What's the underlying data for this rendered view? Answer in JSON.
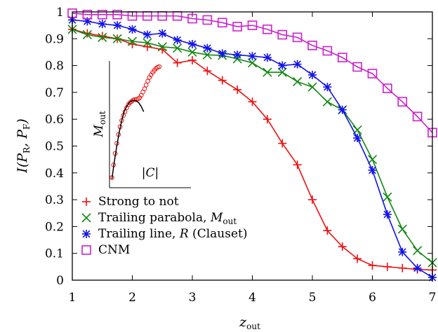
{
  "chart_data": {
    "type": "line",
    "xlabel": "z",
    "xlabel_sub": "out",
    "ylabel": "I(P",
    "ylabel_parts": [
      "I(P",
      "R",
      ", P",
      "F",
      ")"
    ],
    "xlim": [
      1,
      7
    ],
    "ylim": [
      0,
      1
    ],
    "x_ticks": [
      "1",
      "2",
      "3",
      "4",
      "5",
      "6",
      "7"
    ],
    "y_ticks": [
      "0",
      "0.1",
      "0.2",
      "0.3",
      "0.4",
      "0.5",
      "0.6",
      "0.7",
      "0.8",
      "0.9",
      "1"
    ],
    "legend_position": "bottom-left",
    "series": [
      {
        "name": "Strong to not",
        "color": "#ee1111",
        "marker": "plus",
        "x": [
          1.0,
          1.25,
          1.5,
          1.75,
          2.0,
          2.25,
          2.5,
          2.75,
          3.0,
          3.25,
          3.5,
          3.75,
          4.0,
          4.25,
          4.5,
          4.75,
          5.0,
          5.25,
          5.5,
          5.75,
          6.0,
          6.25,
          6.5,
          6.75,
          7.0
        ],
        "values": [
          0.935,
          0.92,
          0.91,
          0.9,
          0.88,
          0.87,
          0.86,
          0.81,
          0.82,
          0.78,
          0.745,
          0.71,
          0.665,
          0.6,
          0.51,
          0.43,
          0.3,
          0.185,
          0.125,
          0.08,
          0.055,
          0.05,
          0.045,
          0.04,
          0.038
        ]
      },
      {
        "name_parts": [
          "Trailing parabola, ",
          "M",
          "out"
        ],
        "color": "#118811",
        "marker": "x",
        "x": [
          1.0,
          1.25,
          1.5,
          1.75,
          2.0,
          2.25,
          2.5,
          2.75,
          3.0,
          3.25,
          3.5,
          3.75,
          4.0,
          4.25,
          4.5,
          4.75,
          5.0,
          5.25,
          5.5,
          5.75,
          6.0,
          6.25,
          6.5,
          6.75,
          7.0
        ],
        "values": [
          0.935,
          0.915,
          0.905,
          0.9,
          0.89,
          0.885,
          0.87,
          0.865,
          0.85,
          0.84,
          0.838,
          0.825,
          0.81,
          0.775,
          0.775,
          0.74,
          0.72,
          0.665,
          0.635,
          0.56,
          0.45,
          0.31,
          0.19,
          0.11,
          0.065
        ]
      },
      {
        "name_parts": [
          "Trailing line, ",
          "R",
          " (Clauset)"
        ],
        "color": "#1111ee",
        "marker": "star",
        "x": [
          1.0,
          1.25,
          1.5,
          1.75,
          2.0,
          2.25,
          2.5,
          2.75,
          3.0,
          3.25,
          3.5,
          3.75,
          4.0,
          4.25,
          4.5,
          4.75,
          5.0,
          5.25,
          5.5,
          5.75,
          6.0,
          6.25,
          6.5,
          6.75,
          7.0
        ],
        "values": [
          0.97,
          0.965,
          0.955,
          0.95,
          0.935,
          0.915,
          0.92,
          0.895,
          0.88,
          0.865,
          0.845,
          0.84,
          0.835,
          0.83,
          0.8,
          0.805,
          0.765,
          0.72,
          0.635,
          0.53,
          0.41,
          0.245,
          0.105,
          0.045,
          0.01
        ]
      },
      {
        "name": "CNM",
        "color": "#cc22cc",
        "marker": "square",
        "x": [
          1.0,
          1.25,
          1.5,
          1.75,
          2.0,
          2.25,
          2.5,
          2.75,
          3.0,
          3.25,
          3.5,
          3.75,
          4.0,
          4.25,
          4.5,
          4.75,
          5.0,
          5.25,
          5.5,
          5.75,
          6.0,
          6.25,
          6.5,
          6.75,
          7.0
        ],
        "values": [
          0.995,
          0.99,
          0.99,
          0.99,
          0.985,
          0.985,
          0.985,
          0.985,
          0.975,
          0.97,
          0.96,
          0.945,
          0.95,
          0.935,
          0.915,
          0.905,
          0.875,
          0.855,
          0.83,
          0.795,
          0.77,
          0.715,
          0.665,
          0.61,
          0.55
        ]
      }
    ],
    "inset": {
      "xlabel": "|C|",
      "ylabel_parts": [
        "M",
        "out"
      ],
      "points_color": "#ee1111",
      "fit_color": "#000000",
      "points": [
        [
          0.03,
          0.08
        ],
        [
          0.05,
          0.18
        ],
        [
          0.07,
          0.27
        ],
        [
          0.09,
          0.35
        ],
        [
          0.11,
          0.42
        ],
        [
          0.13,
          0.48
        ],
        [
          0.15,
          0.53
        ],
        [
          0.17,
          0.57
        ],
        [
          0.19,
          0.6
        ],
        [
          0.21,
          0.63
        ],
        [
          0.23,
          0.655
        ],
        [
          0.25,
          0.67
        ],
        [
          0.27,
          0.68
        ],
        [
          0.29,
          0.69
        ],
        [
          0.31,
          0.695
        ],
        [
          0.33,
          0.695
        ],
        [
          0.35,
          0.7
        ],
        [
          0.37,
          0.71
        ],
        [
          0.39,
          0.73
        ],
        [
          0.41,
          0.755
        ],
        [
          0.43,
          0.78
        ],
        [
          0.45,
          0.81
        ],
        [
          0.47,
          0.84
        ],
        [
          0.49,
          0.87
        ],
        [
          0.51,
          0.89
        ],
        [
          0.53,
          0.91
        ],
        [
          0.55,
          0.925
        ],
        [
          0.57,
          0.94
        ],
        [
          0.59,
          0.95
        ],
        [
          0.61,
          0.955
        ]
      ],
      "fit": [
        [
          0.03,
          0.07
        ],
        [
          0.06,
          0.21
        ],
        [
          0.09,
          0.33
        ],
        [
          0.12,
          0.44
        ],
        [
          0.15,
          0.53
        ],
        [
          0.18,
          0.6
        ],
        [
          0.21,
          0.64
        ],
        [
          0.24,
          0.67
        ],
        [
          0.27,
          0.685
        ],
        [
          0.3,
          0.69
        ],
        [
          0.33,
          0.685
        ],
        [
          0.36,
          0.67
        ],
        [
          0.39,
          0.64
        ],
        [
          0.42,
          0.6
        ]
      ]
    }
  }
}
